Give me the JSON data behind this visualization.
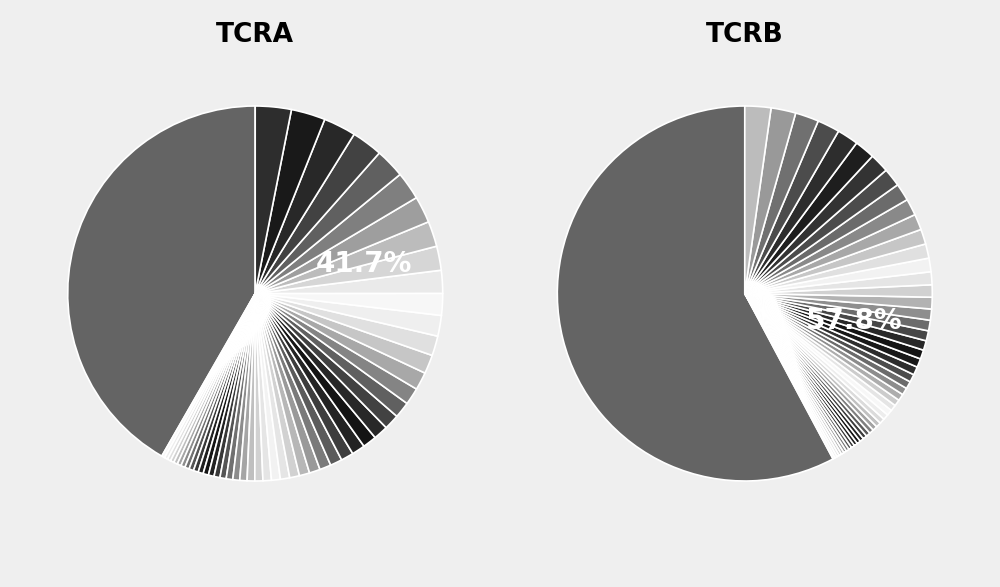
{
  "tcra_title": "TCRA",
  "tcrb_title": "TCRB",
  "tcra_main_pct": 41.7,
  "tcrb_main_pct": 57.8,
  "tcra_main_color": "#646464",
  "tcrb_main_color": "#646464",
  "tcra_main_label": "41.7%",
  "tcrb_main_label": "57.8%",
  "background_color": "#efefef",
  "label_fontsize": 20,
  "title_fontsize": 19,
  "wedge_linewidth": 1.2,
  "wedge_edgecolor": "white",
  "tcra_small_gray_levels": [
    0.97,
    0.93,
    0.88,
    0.82,
    0.75,
    0.65,
    0.55,
    0.44,
    0.33,
    0.22,
    0.13,
    0.08,
    0.13,
    0.22,
    0.33,
    0.44,
    0.55,
    0.65,
    0.75,
    0.82,
    0.9,
    0.95,
    0.9,
    0.82,
    0.72,
    0.6,
    0.48,
    0.36,
    0.24,
    0.14,
    0.08,
    0.16,
    0.26,
    0.38,
    0.52,
    0.66,
    0.78,
    0.88,
    0.94,
    0.97,
    0.92,
    0.84,
    0.74,
    0.62,
    0.5,
    0.38,
    0.26,
    0.16,
    0.1,
    0.18
  ],
  "tcrb_small_gray_levels": [
    0.97,
    0.93,
    0.88,
    0.8,
    0.7,
    0.58,
    0.46,
    0.34,
    0.22,
    0.12,
    0.08,
    0.14,
    0.24,
    0.36,
    0.5,
    0.64,
    0.76,
    0.86,
    0.93,
    0.97,
    0.9,
    0.8,
    0.68,
    0.55,
    0.42,
    0.3,
    0.18,
    0.1,
    0.08,
    0.16,
    0.28,
    0.42,
    0.56,
    0.7,
    0.82,
    0.9,
    0.95,
    0.88,
    0.78,
    0.66,
    0.54,
    0.42,
    0.3,
    0.2,
    0.12,
    0.18,
    0.3,
    0.44,
    0.6,
    0.74
  ]
}
